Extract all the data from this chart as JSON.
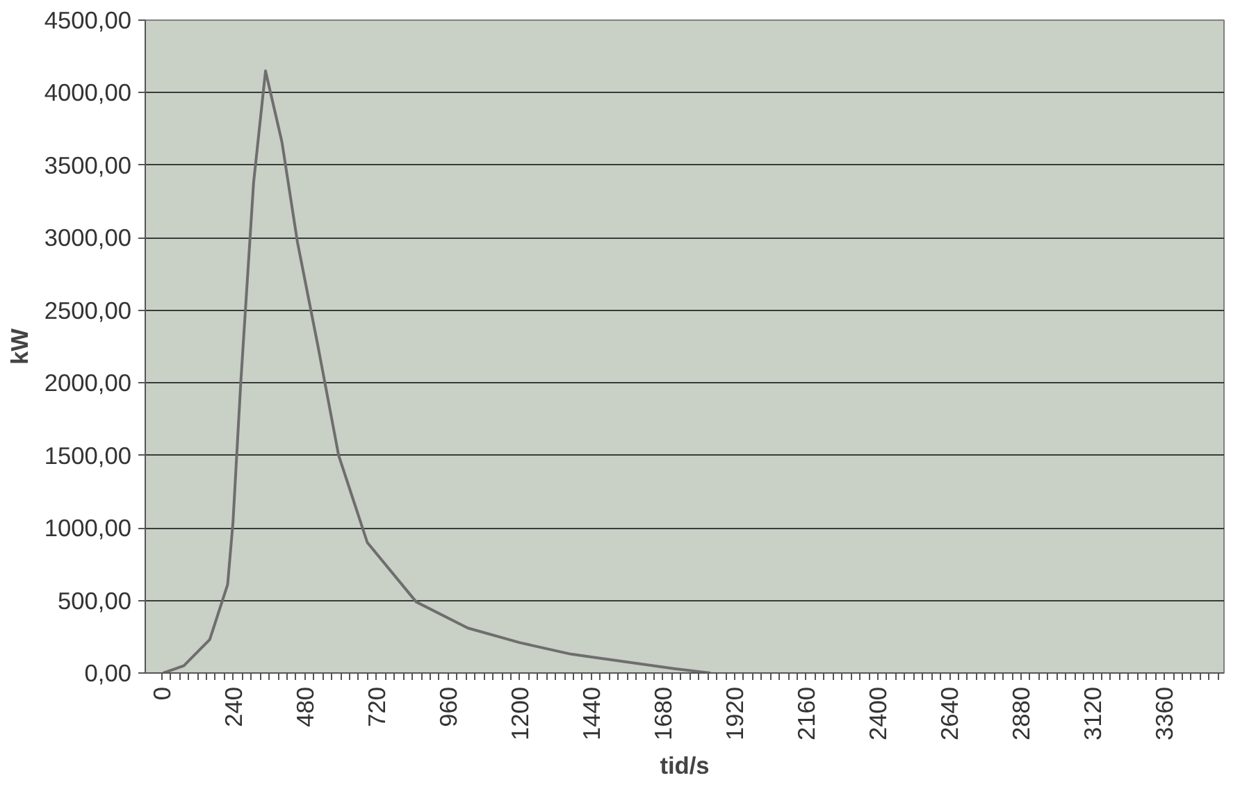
{
  "chart_data": {
    "type": "line",
    "xlabel": "tid/s",
    "ylabel": "kW",
    "x": [
      5,
      74,
      161,
      221,
      239,
      265,
      308,
      348,
      403,
      455,
      524,
      593,
      689,
      853,
      1026,
      1199,
      1372,
      1441,
      1718,
      1839
    ],
    "series": [
      {
        "color": "#6e6e6e",
        "values": [
          0,
          50,
          230,
          610,
          1040,
          2000,
          3380,
          4150,
          3660,
          2970,
          2250,
          1500,
          900,
          490,
          310,
          210,
          130,
          110,
          30,
          0
        ]
      }
    ],
    "xlim": [
      -55,
      3560
    ],
    "xticks": [
      0,
      240,
      480,
      720,
      960,
      1200,
      1440,
      1680,
      1920,
      2160,
      2400,
      2640,
      2880,
      3120,
      3360
    ],
    "ylim": [
      0,
      4500
    ],
    "yticks": [
      {
        "value": 0,
        "label": "0,00"
      },
      {
        "value": 500,
        "label": "500,00"
      },
      {
        "value": 1000,
        "label": "1000,00"
      },
      {
        "value": 1500,
        "label": "1500,00"
      },
      {
        "value": 2000,
        "label": "2000,00"
      },
      {
        "value": 2500,
        "label": "2500,00"
      },
      {
        "value": 3000,
        "label": "3000,00"
      },
      {
        "value": 3500,
        "label": "3500,00"
      },
      {
        "value": 4000,
        "label": "4000,00"
      },
      {
        "value": 4500,
        "label": "4500,00"
      }
    ],
    "grid": "y",
    "marker": "none",
    "line_style": "solid"
  }
}
